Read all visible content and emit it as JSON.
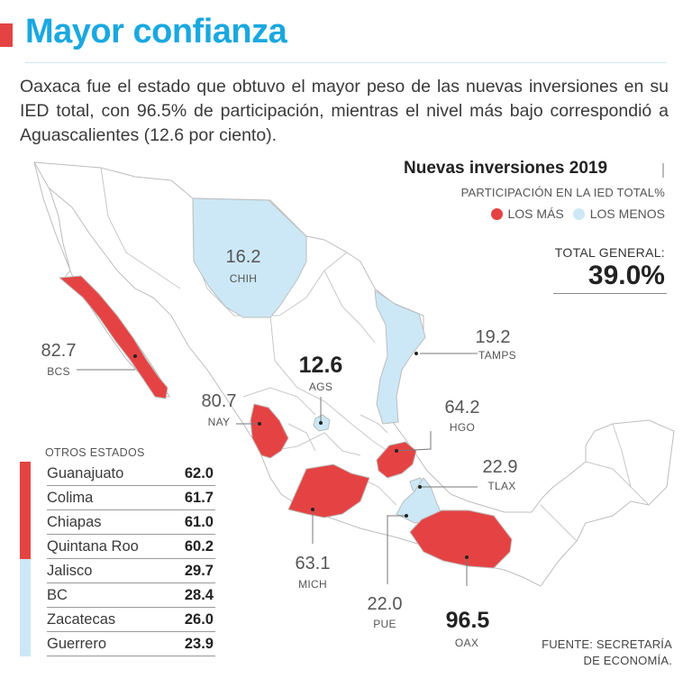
{
  "header": {
    "title": "Mayor confianza",
    "intro": "Oaxaca fue el estado que obtuvo el mayor peso de las nuevas inversiones en su IED total, con 96.5% de participación, mientras el nivel más bajo correspondió a Aguascalientes (12.6 por ciento)."
  },
  "colors": {
    "high": "#e54343",
    "low": "#cce8f6",
    "neutral": "#ffffff",
    "accent": "#1aa8e0"
  },
  "legend": {
    "title": "Nuevas inversiones 2019",
    "subtitle": "PARTICIPACIÓN EN LA IED TOTAL%",
    "high_label": "LOS MÁS",
    "low_label": "LOS MENOS",
    "total_label": "TOTAL GENERAL:",
    "total_value": "39.0%"
  },
  "states": {
    "chih": {
      "value": "16.2",
      "abbr": "CHIH",
      "group": "low"
    },
    "bcs": {
      "value": "82.7",
      "abbr": "BCS",
      "group": "high"
    },
    "ags": {
      "value": "12.6",
      "abbr": "AGS",
      "group": "low"
    },
    "nay": {
      "value": "80.7",
      "abbr": "NAY",
      "group": "high"
    },
    "tamps": {
      "value": "19.2",
      "abbr": "TAMPS",
      "group": "low"
    },
    "hgo": {
      "value": "64.2",
      "abbr": "HGO",
      "group": "high"
    },
    "tlax": {
      "value": "22.9",
      "abbr": "TLAX",
      "group": "low"
    },
    "mich": {
      "value": "63.1",
      "abbr": "MICH",
      "group": "high"
    },
    "pue": {
      "value": "22.0",
      "abbr": "PUE",
      "group": "low"
    },
    "oax": {
      "value": "96.5",
      "abbr": "OAX",
      "group": "high"
    }
  },
  "others": {
    "title": "OTROS ESTADOS",
    "rows": [
      {
        "name": "Guanajuato",
        "value": "62.0",
        "group": "high"
      },
      {
        "name": "Colima",
        "value": "61.7",
        "group": "high"
      },
      {
        "name": "Chiapas",
        "value": "61.0",
        "group": "high"
      },
      {
        "name": "Quintana Roo",
        "value": "60.2",
        "group": "high"
      },
      {
        "name": "Jalisco",
        "value": "29.7",
        "group": "low"
      },
      {
        "name": "BC",
        "value": "28.4",
        "group": "low"
      },
      {
        "name": "Zacatecas",
        "value": "26.0",
        "group": "low"
      },
      {
        "name": "Guerrero",
        "value": "23.9",
        "group": "low"
      }
    ]
  },
  "source": {
    "line1": "FUENTE: SECRETARÍA",
    "line2": "DE ECONOMÍA."
  }
}
